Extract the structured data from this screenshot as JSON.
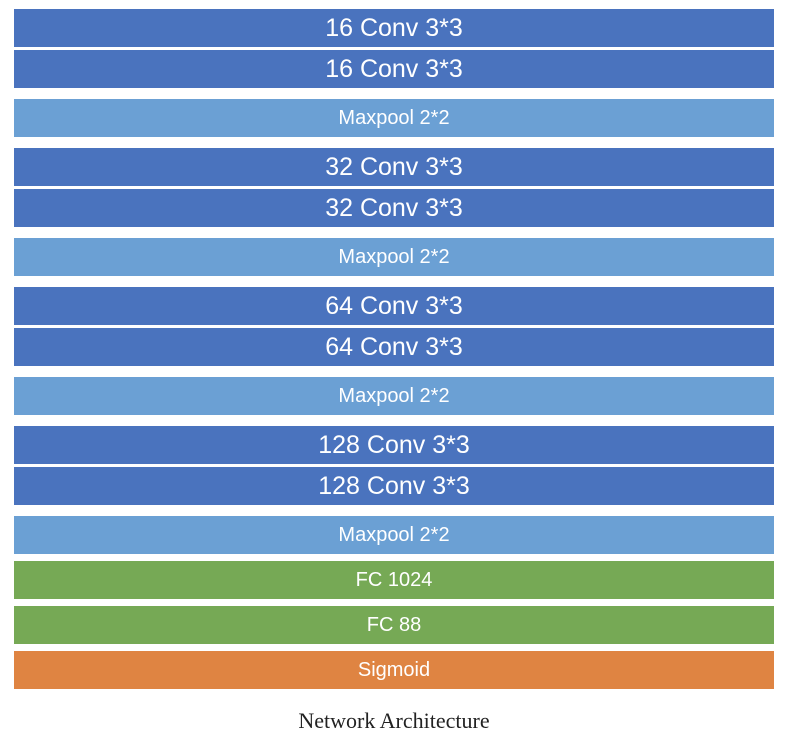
{
  "layers": [
    {
      "label": "16 Conv 3*3",
      "kind": "conv"
    },
    {
      "label": "16 Conv 3*3",
      "kind": "conv"
    },
    {
      "label": "Maxpool 2*2",
      "kind": "pool"
    },
    {
      "label": "32 Conv 3*3",
      "kind": "conv"
    },
    {
      "label": "32 Conv 3*3",
      "kind": "conv"
    },
    {
      "label": "Maxpool 2*2",
      "kind": "pool"
    },
    {
      "label": "64 Conv 3*3",
      "kind": "conv"
    },
    {
      "label": "64 Conv 3*3",
      "kind": "conv"
    },
    {
      "label": "Maxpool 2*2",
      "kind": "pool"
    },
    {
      "label": "128 Conv 3*3",
      "kind": "conv"
    },
    {
      "label": "128 Conv 3*3",
      "kind": "conv"
    },
    {
      "label": "Maxpool 2*2",
      "kind": "pool"
    },
    {
      "label": "FC 1024",
      "kind": "fc"
    },
    {
      "label": "FC 88",
      "kind": "fc"
    },
    {
      "label": "Sigmoid",
      "kind": "act"
    }
  ],
  "colors": {
    "conv": "#4a73be",
    "pool": "#6ba0d4",
    "fc": "#76a955",
    "act": "#df8442"
  },
  "caption": "Network Architecture"
}
